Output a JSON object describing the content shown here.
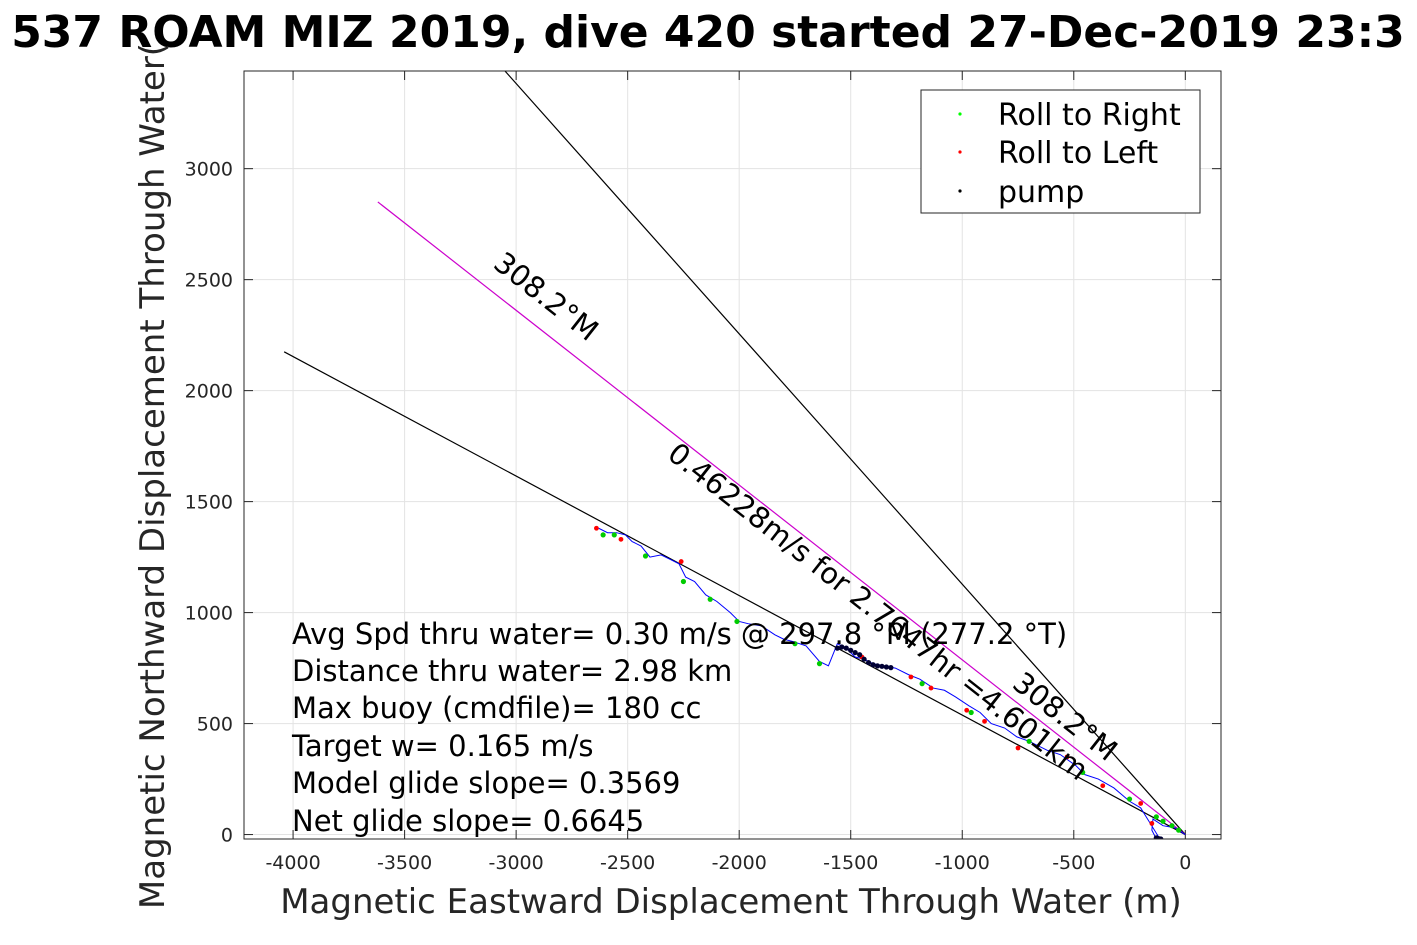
{
  "chart_data": {
    "type": "scatter",
    "title": "537 ROAM MIZ 2019, dive 420 started 27-Dec-2019 23:3",
    "xlabel": "Magnetic Eastward Displacement Through Water (m)",
    "ylabel": "Magnetic Northward Displacement Through Water(",
    "xlim": [
      -4220,
      160
    ],
    "ylim": [
      -20,
      3440
    ],
    "xticks": [
      -4000,
      -3500,
      -3000,
      -2500,
      -2000,
      -1500,
      -1000,
      -500,
      0
    ],
    "yticks": [
      0,
      500,
      1000,
      1500,
      2000,
      2500,
      3000
    ],
    "grid": true,
    "legend": {
      "placement": "top-right",
      "entries": [
        {
          "label": "Roll to Right",
          "color": "#00ff00"
        },
        {
          "label": "Roll to Left",
          "color": "#ff0000"
        },
        {
          "label": "pump",
          "color": "#000000"
        }
      ]
    },
    "lines": [
      {
        "label": "upper envelope",
        "color": "#000000",
        "x": [
          0,
          -3050
        ],
        "y": [
          0,
          3440
        ]
      },
      {
        "label": "heading 308.2°M",
        "color": "#cc00cc",
        "x": [
          0,
          -3620
        ],
        "y": [
          0,
          2850
        ]
      },
      {
        "label": "lower envelope",
        "color": "#000000",
        "x": [
          0,
          -4040
        ],
        "y": [
          0,
          2175
        ]
      }
    ],
    "track": {
      "color": "#0000ff",
      "x": [
        0,
        -45,
        -100,
        -145,
        -150,
        -130,
        -120,
        -200,
        -250,
        -320,
        -390,
        -450,
        -490,
        -560,
        -620,
        -700,
        -755,
        -810,
        -870,
        -920,
        -970,
        -1030,
        -1080,
        -1130,
        -1190,
        -1240,
        -1300,
        -1350,
        -1400,
        -1440,
        -1480,
        -1520,
        -1560,
        -1600,
        -1640,
        -1700,
        -1760,
        -1800,
        -1840,
        -1900,
        -1960,
        -2000,
        -2040,
        -2100,
        -2150,
        -2200,
        -2240,
        -2270,
        -2310,
        -2350,
        -2400,
        -2440,
        -2480,
        -2510,
        -2550,
        -2590,
        -2630
      ],
      "y": [
        0,
        30,
        40,
        70,
        20,
        -20,
        -10,
        120,
        150,
        210,
        250,
        270,
        310,
        360,
        380,
        420,
        440,
        480,
        500,
        550,
        580,
        620,
        650,
        660,
        700,
        720,
        750,
        760,
        770,
        790,
        800,
        840,
        860,
        760,
        780,
        850,
        870,
        880,
        900,
        940,
        950,
        960,
        1000,
        1050,
        1080,
        1140,
        1160,
        1220,
        1240,
        1260,
        1250,
        1300,
        1320,
        1350,
        1360,
        1360,
        1380
      ]
    },
    "roll_right": {
      "x": [
        -30,
        -60,
        -100,
        -130,
        -250,
        -460,
        -700,
        -960,
        -1180,
        -1640,
        -1750,
        -2010,
        -2130,
        -2250,
        -2420,
        -2560,
        -2610
      ],
      "y": [
        20,
        40,
        60,
        80,
        160,
        280,
        420,
        550,
        680,
        770,
        860,
        960,
        1060,
        1140,
        1255,
        1350,
        1350
      ]
    },
    "roll_left": {
      "x": [
        -130,
        -150,
        -200,
        -370,
        -530,
        -750,
        -900,
        -980,
        -1140,
        -1230,
        -1450,
        -2260,
        -2530,
        -2640
      ],
      "y": [
        -20,
        50,
        140,
        220,
        350,
        390,
        510,
        560,
        660,
        710,
        800,
        1230,
        1330,
        1380
      ]
    },
    "pump": {
      "x": [
        -1560,
        -1540,
        -1520,
        -1500,
        -1480,
        -1460,
        -1440,
        -1420,
        -1400,
        -1380,
        -1360,
        -1340,
        -1320,
        -130,
        -120,
        -110
      ],
      "y": [
        840,
        845,
        840,
        830,
        820,
        810,
        790,
        775,
        765,
        760,
        758,
        755,
        752,
        -15,
        -18,
        -20
      ]
    },
    "annotations": {
      "lines": [
        "Avg Spd thru water=  0.30 m/s @ 297.8 °M (277.2 °T)",
        "Distance thru water=  2.98 km",
        "Max buoy (cmdfile)= 180 cc",
        "Target w= 0.165 m/s",
        "Model glide slope= 0.3569",
        "Net glide slope= 0.6645"
      ],
      "heading_label_1": "308.2°M",
      "speed_label": "0.46228m/s for 2.7647hr =4.601km",
      "heading_label_2": "308.2°M"
    }
  }
}
